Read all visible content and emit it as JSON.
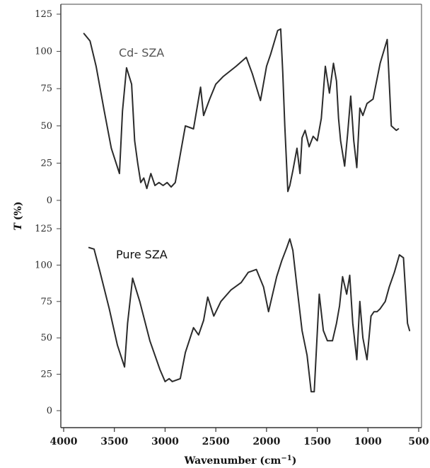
{
  "chart_data": {
    "type": "line",
    "xlabel": "Wavenumber (cm",
    "xlabel_sup": "−1",
    "xlabel_close": ")",
    "ylabel_symbol": "T",
    "ylabel_unit": "(%)",
    "xlim": [
      4000,
      500
    ],
    "x_ticks": [
      "4000",
      "3500",
      "3000",
      "2500",
      "2000",
      "1500",
      "1000",
      "500"
    ],
    "grid": false,
    "panels": [
      {
        "label": "Cd- SZA",
        "label_color": "#555555",
        "ylim": [
          0,
          125
        ],
        "y_ticks": [
          "0",
          "25",
          "50",
          "75",
          "100",
          "125"
        ],
        "series": [
          {
            "x": [
              3800,
              3740,
              3680,
              3600,
              3530,
              3450,
              3420,
              3380,
              3330,
              3300,
              3270,
              3240,
              3210,
              3180,
              3140,
              3100,
              3060,
              3020,
              2980,
              2940,
              2900,
              2800,
              2720,
              2650,
              2620,
              2560,
              2500,
              2430,
              2300,
              2200,
              2140,
              2060,
              2000,
              1960,
              1890,
              1860,
              1840,
              1820,
              1790,
              1770,
              1740,
              1700,
              1670,
              1650,
              1620,
              1580,
              1540,
              1500,
              1460,
              1420,
              1380,
              1340,
              1310,
              1290,
              1270,
              1230,
              1200,
              1170,
              1140,
              1110,
              1080,
              1050,
              1010,
              950,
              880,
              810,
              770,
              720,
              700
            ],
            "y": [
              112,
              107,
              90,
              60,
              35,
              18,
              60,
              89,
              78,
              40,
              25,
              12,
              15,
              8,
              18,
              10,
              12,
              10,
              12,
              9,
              12,
              50,
              48,
              76,
              57,
              68,
              78,
              83,
              90,
              96,
              85,
              67,
              90,
              98,
              114,
              115,
              86,
              50,
              6,
              10,
              20,
              35,
              18,
              42,
              47,
              36,
              43,
              40,
              55,
              90,
              72,
              92,
              80,
              55,
              40,
              23,
              45,
              70,
              40,
              22,
              62,
              57,
              65,
              68,
              92,
              108,
              50,
              47,
              48
            ]
          }
        ]
      },
      {
        "label": "Pure SZA",
        "label_color": "#111111",
        "ylim": [
          0,
          125
        ],
        "y_ticks": [
          "0",
          "25",
          "50",
          "75",
          "100",
          "125"
        ],
        "series": [
          {
            "x": [
              3750,
              3700,
              3640,
              3550,
              3470,
              3400,
              3370,
              3320,
              3250,
              3150,
              3050,
              3000,
              2960,
              2930,
              2850,
              2800,
              2720,
              2670,
              2620,
              2580,
              2520,
              2450,
              2350,
              2250,
              2180,
              2100,
              2030,
              1980,
              1900,
              1850,
              1800,
              1770,
              1740,
              1700,
              1650,
              1600,
              1560,
              1530,
              1480,
              1440,
              1400,
              1350,
              1310,
              1280,
              1250,
              1210,
              1180,
              1150,
              1110,
              1080,
              1050,
              1010,
              970,
              940,
              910,
              880,
              830,
              790,
              740,
              690,
              650,
              610,
              590
            ],
            "y": [
              112,
              111,
              95,
              70,
              45,
              30,
              60,
              91,
              75,
              48,
              28,
              20,
              22,
              20,
              22,
              40,
              57,
              52,
              62,
              78,
              65,
              75,
              83,
              88,
              95,
              97,
              85,
              68,
              92,
              103,
              112,
              118,
              110,
              85,
              55,
              38,
              13,
              13,
              80,
              55,
              48,
              48,
              60,
              72,
              92,
              80,
              93,
              60,
              35,
              75,
              50,
              35,
              65,
              68,
              68,
              70,
              75,
              85,
              95,
              107,
              105,
              60,
              55
            ]
          }
        ]
      }
    ]
  }
}
